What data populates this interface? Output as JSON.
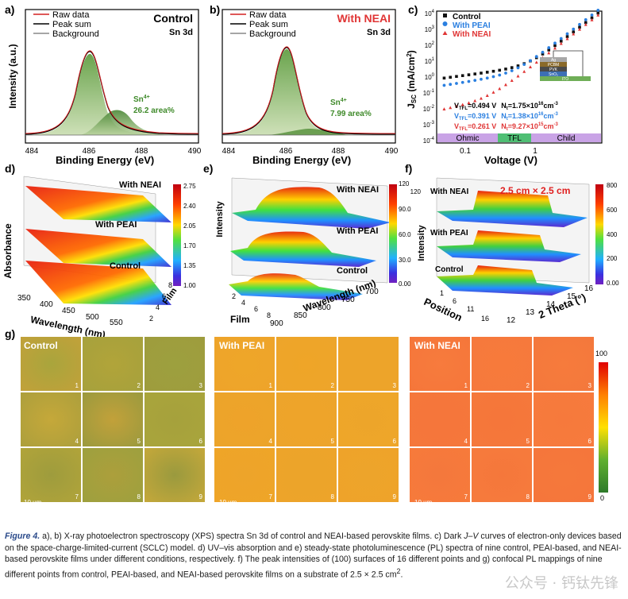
{
  "panel_labels": {
    "a": "a)",
    "b": "b)",
    "c": "c)",
    "d": "d)",
    "e": "e)",
    "f": "f)",
    "g": "g)"
  },
  "panel_a": {
    "title": "Control",
    "subtitle": "Sn 3d",
    "legend": [
      "Raw data",
      "Peak sum",
      "Background"
    ],
    "ylabel": "Intensity (a.u.)",
    "xlabel": "Binding Energy (eV)",
    "xticks": [
      "484",
      "486",
      "488",
      "490"
    ],
    "annot_species": "Sn",
    "annot_sup": "4+",
    "annot_value": "26.2 area%"
  },
  "panel_b": {
    "title": "With NEAI",
    "subtitle": "Sn 3d",
    "legend": [
      "Raw data",
      "Peak sum",
      "Background"
    ],
    "xlabel": "Binding Energy (eV)",
    "xticks": [
      "484",
      "486",
      "488",
      "490"
    ],
    "annot_species": "Sn",
    "annot_sup": "4+",
    "annot_value": "7.99 area%"
  },
  "panel_c": {
    "legend": [
      "Control",
      "With PEAI",
      "With NEAI"
    ],
    "xlabel": "Voltage (V)",
    "ylabel_main": "J",
    "ylabel_sub": "SC",
    "ylabel_unit": " (mA/cm",
    "ylabel_unit_sup": "2",
    "ylabel_end": ")",
    "yticks": [
      "10",
      "10",
      "10",
      "10",
      "10",
      "10",
      "10",
      "10",
      "10"
    ],
    "yexps": [
      "4",
      "3",
      "2",
      "1",
      "0",
      "-1",
      "-2",
      "-3",
      "-4"
    ],
    "xticks": [
      "0.1",
      "1"
    ],
    "regions": [
      "Ohmic",
      "TFL",
      "Child"
    ],
    "device_layers": [
      "Ag",
      "PCBM",
      "PVK",
      "SnO₂",
      "ITO"
    ],
    "vtfl": [
      {
        "v": "=0.494 V",
        "nt": "=1.75×10",
        "exp": "16",
        "unit": "cm",
        "unitexp": "-3"
      },
      {
        "v": "=0.391 V",
        "nt": "=1.38×10",
        "exp": "16",
        "unit": "cm",
        "unitexp": "-3"
      },
      {
        "v": "=0.261 V",
        "nt": "=9.27×10",
        "exp": "15",
        "unit": "cm",
        "unitexp": "-3"
      }
    ],
    "colors": {
      "control": "#111111",
      "peai": "#2a7fe0",
      "neai": "#e03535"
    }
  },
  "panel_d": {
    "labels": [
      "With NEAI",
      "With PEAI",
      "Control"
    ],
    "ylabel": "Absorbance",
    "xlabel": "Wavelength (nm)",
    "zlabel": "Film",
    "xticks": [
      "350",
      "400",
      "450",
      "500",
      "550"
    ],
    "zticks": [
      "2",
      "4",
      "6",
      "8"
    ],
    "cbar": [
      "2.75",
      "2.40",
      "2.05",
      "1.70",
      "1.35",
      "1.00"
    ]
  },
  "panel_e": {
    "labels": [
      "With NEAI",
      "With PEAI",
      "Control"
    ],
    "ylabel": "Intensity",
    "xlabel": "Wavelength (nm)",
    "zlabel": "Film",
    "xticks": [
      "900",
      "850",
      "800",
      "750",
      "700"
    ],
    "zticks": [
      "2",
      "4",
      "6",
      "8"
    ],
    "cbar": [
      "120",
      "90.0",
      "60.0",
      "30.0",
      "0.00"
    ]
  },
  "panel_f": {
    "labels": [
      "With NEAI",
      "With PEAI",
      "Control"
    ],
    "size_label": "2.5 cm × 2.5 cm",
    "ylabel": "Intensity",
    "xlabel": "2 Theta (°)",
    "zlabel": "Position",
    "xticks": [
      "12",
      "13",
      "14",
      "15",
      "16"
    ],
    "zticks": [
      "1",
      "6",
      "11",
      "16"
    ],
    "cbar": [
      "800",
      "600",
      "400",
      "200",
      "0.00"
    ]
  },
  "panel_g": {
    "titles": [
      "Control",
      "With PEAI",
      "With NEAI"
    ],
    "scalebar": "10 um",
    "tile_numbers": [
      "1",
      "2",
      "3",
      "4",
      "5",
      "6",
      "7",
      "8",
      "9"
    ],
    "cbar_max": "100",
    "cbar_min": "0"
  },
  "caption": {
    "fig_label": "Figure 4.",
    "text": " a), b) X-ray photoelectron spectroscopy (XPS) spectra Sn 3d of control and NEAI-based perovskite films. c) Dark ",
    "jv": "J–V",
    "text2": " curves of electron-only devices based on the space-charge-limited-current (SCLC) model. d) UV–vis absorption and e) steady-state photoluminescence (PL) spectra of nine control, PEAI-based, and NEAI-based perovskite films under different conditions, respectively. f) The peak intensities of (100) surfaces of 16 different points and g) confocal PL mappings of nine different points from control, PEAI-based, and NEAI-based perovskite films on a substrate of 2.5 × 2.5 cm",
    "sup": "2",
    "end": "."
  },
  "watermark": "公众号 · 钙钛先锋"
}
